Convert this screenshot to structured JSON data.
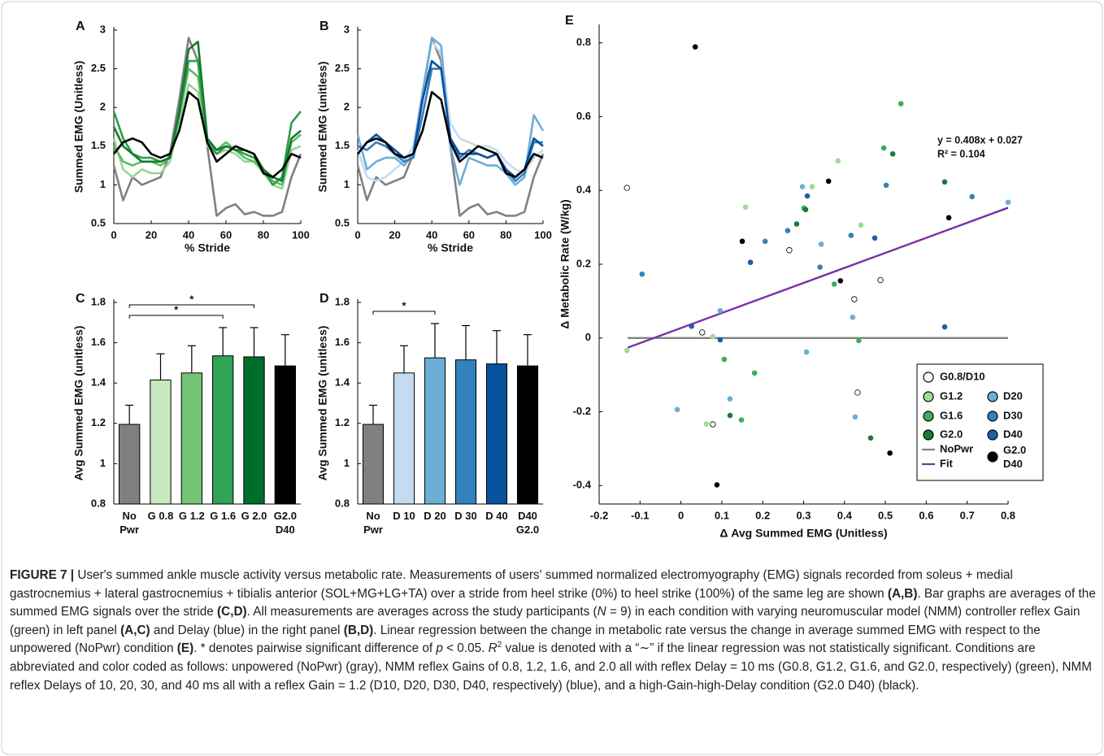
{
  "chart_data": [
    {
      "type": "line",
      "panel_label": "A",
      "xlabel": "% Stride",
      "ylabel": "Summed EMG (Unitless)",
      "x": [
        0,
        5,
        10,
        15,
        20,
        25,
        30,
        35,
        40,
        45,
        50,
        55,
        60,
        65,
        70,
        75,
        80,
        85,
        90,
        95,
        100
      ],
      "xlim": [
        0,
        100
      ],
      "xticks": [
        0,
        20,
        40,
        60,
        80,
        100
      ],
      "ylim": [
        0.5,
        3
      ],
      "yticks": [
        0.5,
        1,
        1.5,
        2,
        2.5,
        3
      ],
      "series": [
        {
          "color": "#808080",
          "values": [
            1.25,
            0.8,
            1.1,
            1.0,
            1.05,
            1.1,
            1.4,
            2.1,
            2.9,
            2.6,
            1.5,
            0.6,
            0.7,
            0.75,
            0.62,
            0.65,
            0.6,
            0.6,
            0.65,
            1.1,
            1.4
          ]
        },
        {
          "color": "#99d594",
          "values": [
            1.6,
            1.2,
            1.1,
            1.2,
            1.15,
            1.15,
            1.3,
            1.8,
            2.3,
            2.2,
            1.5,
            1.4,
            1.45,
            1.4,
            1.3,
            1.3,
            1.15,
            1.0,
            0.95,
            1.45,
            1.5
          ]
        },
        {
          "color": "#5fbb5f",
          "values": [
            1.5,
            1.3,
            1.25,
            1.3,
            1.3,
            1.25,
            1.35,
            1.9,
            2.5,
            2.4,
            1.55,
            1.45,
            1.55,
            1.45,
            1.35,
            1.3,
            1.2,
            1.05,
            1.0,
            1.55,
            1.65
          ]
        },
        {
          "color": "#2e9e48",
          "values": [
            1.95,
            1.6,
            1.4,
            1.35,
            1.35,
            1.3,
            1.35,
            1.9,
            2.6,
            2.6,
            1.55,
            1.4,
            1.5,
            1.45,
            1.4,
            1.35,
            1.2,
            1.0,
            1.1,
            1.8,
            1.95
          ]
        },
        {
          "color": "#127a34",
          "values": [
            1.75,
            1.5,
            1.4,
            1.3,
            1.3,
            1.3,
            1.35,
            1.95,
            2.75,
            2.85,
            1.6,
            1.45,
            1.5,
            1.45,
            1.45,
            1.4,
            1.2,
            1.1,
            1.05,
            1.6,
            1.7
          ]
        },
        {
          "color": "#000000",
          "values": [
            1.4,
            1.55,
            1.6,
            1.55,
            1.4,
            1.35,
            1.4,
            1.7,
            2.2,
            2.1,
            1.55,
            1.3,
            1.4,
            1.5,
            1.45,
            1.4,
            1.15,
            1.1,
            1.2,
            1.4,
            1.35
          ]
        }
      ]
    },
    {
      "type": "line",
      "panel_label": "B",
      "xlabel": "% Stride",
      "ylabel": "Summed EMG (unitless)",
      "x": [
        0,
        5,
        10,
        15,
        20,
        25,
        30,
        35,
        40,
        45,
        50,
        55,
        60,
        65,
        70,
        75,
        80,
        85,
        90,
        95,
        100
      ],
      "xlim": [
        0,
        100
      ],
      "xticks": [
        0,
        20,
        40,
        60,
        80,
        100
      ],
      "ylim": [
        0.5,
        3
      ],
      "yticks": [
        0.5,
        1,
        1.5,
        2,
        2.5,
        3
      ],
      "series": [
        {
          "color": "#808080",
          "values": [
            1.25,
            0.8,
            1.1,
            1.0,
            1.05,
            1.1,
            1.4,
            2.1,
            2.9,
            2.6,
            1.5,
            0.6,
            0.7,
            0.75,
            0.62,
            0.65,
            0.6,
            0.6,
            0.65,
            1.1,
            1.4
          ]
        },
        {
          "color": "#c6dbef",
          "values": [
            1.45,
            1.1,
            1.05,
            1.1,
            1.2,
            1.3,
            1.5,
            2.2,
            2.85,
            2.7,
            1.8,
            1.6,
            1.55,
            1.5,
            1.5,
            1.45,
            1.3,
            1.2,
            1.15,
            1.35,
            1.45
          ]
        },
        {
          "color": "#6baed6",
          "values": [
            1.65,
            1.2,
            1.3,
            1.35,
            1.35,
            1.25,
            1.4,
            2.2,
            2.9,
            2.8,
            1.5,
            1.0,
            1.35,
            1.3,
            1.25,
            1.25,
            1.15,
            1.0,
            1.1,
            1.9,
            1.7
          ]
        },
        {
          "color": "#2f7fc1",
          "values": [
            1.5,
            1.45,
            1.55,
            1.5,
            1.4,
            1.3,
            1.35,
            1.9,
            2.5,
            2.5,
            1.6,
            1.35,
            1.45,
            1.4,
            1.35,
            1.4,
            1.2,
            1.05,
            1.15,
            1.55,
            1.55
          ]
        },
        {
          "color": "#0b4f9c",
          "values": [
            1.4,
            1.55,
            1.65,
            1.55,
            1.45,
            1.35,
            1.4,
            2.1,
            2.6,
            2.5,
            1.6,
            1.4,
            1.4,
            1.4,
            1.35,
            1.4,
            1.2,
            1.1,
            1.2,
            1.6,
            1.5
          ]
        },
        {
          "color": "#000000",
          "values": [
            1.4,
            1.55,
            1.6,
            1.55,
            1.4,
            1.35,
            1.4,
            1.7,
            2.2,
            2.1,
            1.55,
            1.3,
            1.4,
            1.5,
            1.45,
            1.4,
            1.15,
            1.1,
            1.2,
            1.4,
            1.35
          ]
        }
      ]
    },
    {
      "type": "bar",
      "panel_label": "C",
      "ylabel": "Avg Summed EMG (unitless)",
      "categories": [
        "No Pwr",
        "G 0.8",
        "G 1.2",
        "G 1.6",
        "G 2.0",
        "G2.0 D40"
      ],
      "values": [
        1.195,
        1.415,
        1.45,
        1.535,
        1.53,
        1.485
      ],
      "errors": [
        0.095,
        0.13,
        0.135,
        0.14,
        0.145,
        0.155
      ],
      "colors": [
        "#808080",
        "#c7e9c0",
        "#74c476",
        "#31a354",
        "#006d2c",
        "#000000"
      ],
      "ylim": [
        0.8,
        1.8
      ],
      "yticks": [
        0.8,
        1,
        1.2,
        1.4,
        1.6,
        1.8
      ],
      "significance": [
        {
          "label": "*",
          "between": [
            "No Pwr",
            "G 2.0"
          ]
        },
        {
          "label": "*",
          "between": [
            "No Pwr",
            "G 1.6"
          ]
        }
      ]
    },
    {
      "type": "bar",
      "panel_label": "D",
      "ylabel": "Avg Summed EMG (unitless)",
      "categories": [
        "No Pwr",
        "D 10",
        "D 20",
        "D 30",
        "D 40",
        "D40 G2.0"
      ],
      "values": [
        1.195,
        1.45,
        1.525,
        1.515,
        1.495,
        1.485
      ],
      "errors": [
        0.095,
        0.135,
        0.17,
        0.17,
        0.165,
        0.155
      ],
      "colors": [
        "#808080",
        "#c6dbef",
        "#6baed6",
        "#3182bd",
        "#08519c",
        "#000000"
      ],
      "ylim": [
        0.8,
        1.8
      ],
      "yticks": [
        0.8,
        1,
        1.2,
        1.4,
        1.6,
        1.8
      ],
      "significance": [
        {
          "label": "*",
          "between": [
            "No Pwr",
            "D 20"
          ]
        }
      ]
    },
    {
      "type": "scatter",
      "panel_label": "E",
      "xlabel": "Δ Avg Summed EMG (Unitless)",
      "ylabel": "Δ Metabolic Rate (W/kg)",
      "xlim": [
        -0.2,
        0.8
      ],
      "xticks": [
        -0.2,
        -0.1,
        0,
        0.1,
        0.2,
        0.3,
        0.4,
        0.5,
        0.6,
        0.7,
        0.8
      ],
      "ylim": [
        -0.45,
        0.85
      ],
      "yticks": [
        -0.4,
        -0.2,
        0,
        0.2,
        0.4,
        0.6,
        0.8
      ],
      "annotations": [
        "y = 0.408x + 0.027",
        "R² = 0.104"
      ],
      "legend": "lower right",
      "series": [
        {
          "name": "G0.8/D10",
          "mark": "circle",
          "color": "#ffffff",
          "edgecolor": "#000000",
          "x": [
            -0.132,
            0.052,
            0.078,
            0.265,
            0.424,
            0.432,
            0.488
          ],
          "values": [
            0.407,
            0.015,
            -0.234,
            0.238,
            0.105,
            -0.148,
            0.157
          ]
        },
        {
          "name": "G1.2",
          "mark": "circle",
          "color": "#a1d99b",
          "x": [
            -0.132,
            0.062,
            0.078,
            0.158,
            0.321,
            0.384,
            0.44
          ],
          "values": [
            -0.034,
            -0.233,
            0.004,
            0.355,
            0.41,
            0.48,
            0.306
          ]
        },
        {
          "name": "D20",
          "mark": "circle",
          "color": "#6baed6",
          "x": [
            -0.009,
            0.12,
            0.307,
            0.343,
            0.297,
            0.42,
            0.426,
            0.8,
            0.096
          ],
          "values": [
            -0.194,
            -0.165,
            -0.038,
            0.254,
            0.41,
            0.056,
            -0.214,
            0.368,
            0.074
          ]
        },
        {
          "name": "G1.6",
          "mark": "circle",
          "color": "#41ab5d",
          "x": [
            0.106,
            0.18,
            0.301,
            0.375,
            0.435,
            0.496,
            0.538,
            0.148
          ],
          "values": [
            -0.058,
            -0.095,
            0.352,
            0.146,
            -0.007,
            0.515,
            0.635,
            -0.222
          ]
        },
        {
          "name": "D30",
          "mark": "circle",
          "color": "#3182bd",
          "x": [
            -0.095,
            0.206,
            0.261,
            0.34,
            0.712,
            0.502,
            0.416
          ],
          "values": [
            0.173,
            0.262,
            0.291,
            0.192,
            0.383,
            0.414,
            0.278
          ]
        },
        {
          "name": "G2.0",
          "mark": "circle",
          "color": "#1a7a3a",
          "x": [
            0.12,
            0.283,
            0.305,
            0.464,
            0.518,
            0.645
          ],
          "values": [
            -0.21,
            0.309,
            0.348,
            -0.271,
            0.499,
            0.423
          ]
        },
        {
          "name": "D40",
          "mark": "circle",
          "color": "#1f5fa8",
          "x": [
            0.026,
            0.096,
            0.17,
            0.309,
            0.474,
            0.645
          ],
          "values": [
            0.032,
            -0.005,
            0.205,
            0.385,
            0.271,
            0.03
          ]
        },
        {
          "name": "NoPwr",
          "mark": "line",
          "color": "#808080",
          "x": [
            -0.13,
            0.8
          ],
          "values": [
            0,
            0
          ]
        },
        {
          "name": "Fit",
          "mark": "line",
          "color": "#7b2fa8",
          "x": [
            -0.13,
            0.8
          ],
          "values": [
            -0.026,
            0.353
          ]
        },
        {
          "name": "G2.0 D40",
          "mark": "circle",
          "color": "#000000",
          "x": [
            0.035,
            0.088,
            0.15,
            0.361,
            0.39,
            0.511,
            0.655
          ],
          "values": [
            0.789,
            -0.398,
            0.262,
            0.425,
            0.155,
            -0.312,
            0.326
          ]
        }
      ]
    }
  ],
  "caption": {
    "label": "FIGURE 7 |",
    "runs": [
      {
        "text": " User's summed ankle muscle activity versus metabolic rate. Measurements of users' summed normalized electromyography (EMG) signals recorded from soleus + medial gastrocnemius + lateral gastrocnemius + tibialis anterior (SOL+MG+LG+TA) over a stride from heel strike (0%) to heel strike (100%) of the same leg are shown "
      },
      {
        "text": "(A,B)",
        "style": "bold"
      },
      {
        "text": ". Bar graphs are averages of the summed EMG signals over the stride "
      },
      {
        "text": "(C,D)",
        "style": "bold"
      },
      {
        "text": ". All measurements are averages across the study participants ("
      },
      {
        "text": "N",
        "style": "italic"
      },
      {
        "text": " = 9) in each condition with varying neuromuscular model (NMM) controller reflex Gain (green) in left panel "
      },
      {
        "text": "(A,C)",
        "style": "bold"
      },
      {
        "text": " and Delay (blue) in the right panel "
      },
      {
        "text": "(B,D)",
        "style": "bold"
      },
      {
        "text": ". Linear regression between the change in metabolic rate versus the change in average summed EMG with respect to the unpowered (NoPwr) condition "
      },
      {
        "text": "(E)",
        "style": "bold"
      },
      {
        "text": ". * denotes pairwise significant difference of "
      },
      {
        "text": "p",
        "style": "italic"
      },
      {
        "text": " < 0.05. "
      },
      {
        "text": "R",
        "style": "italic"
      },
      {
        "text": "2",
        "style": "sup"
      },
      {
        "text": " value is denoted with a “∼” if the linear regression was not statistically significant. Conditions are abbreviated and color coded as follows: unpowered (NoPwr) (gray), NMM reflex Gains of 0.8, 1.2, 1.6, and 2.0 all with reflex Delay = 10 ms (G0.8, G1.2, G1.6, and G2.0, respectively) (green), NMM reflex Delays of 10, 20, 30, and 40 ms all with a reflex Gain = 1.2 (D10, D20, D30, D40, respectively) (blue), and a high-Gain-high-Delay condition (G2.0 D40) (black)."
      }
    ]
  }
}
